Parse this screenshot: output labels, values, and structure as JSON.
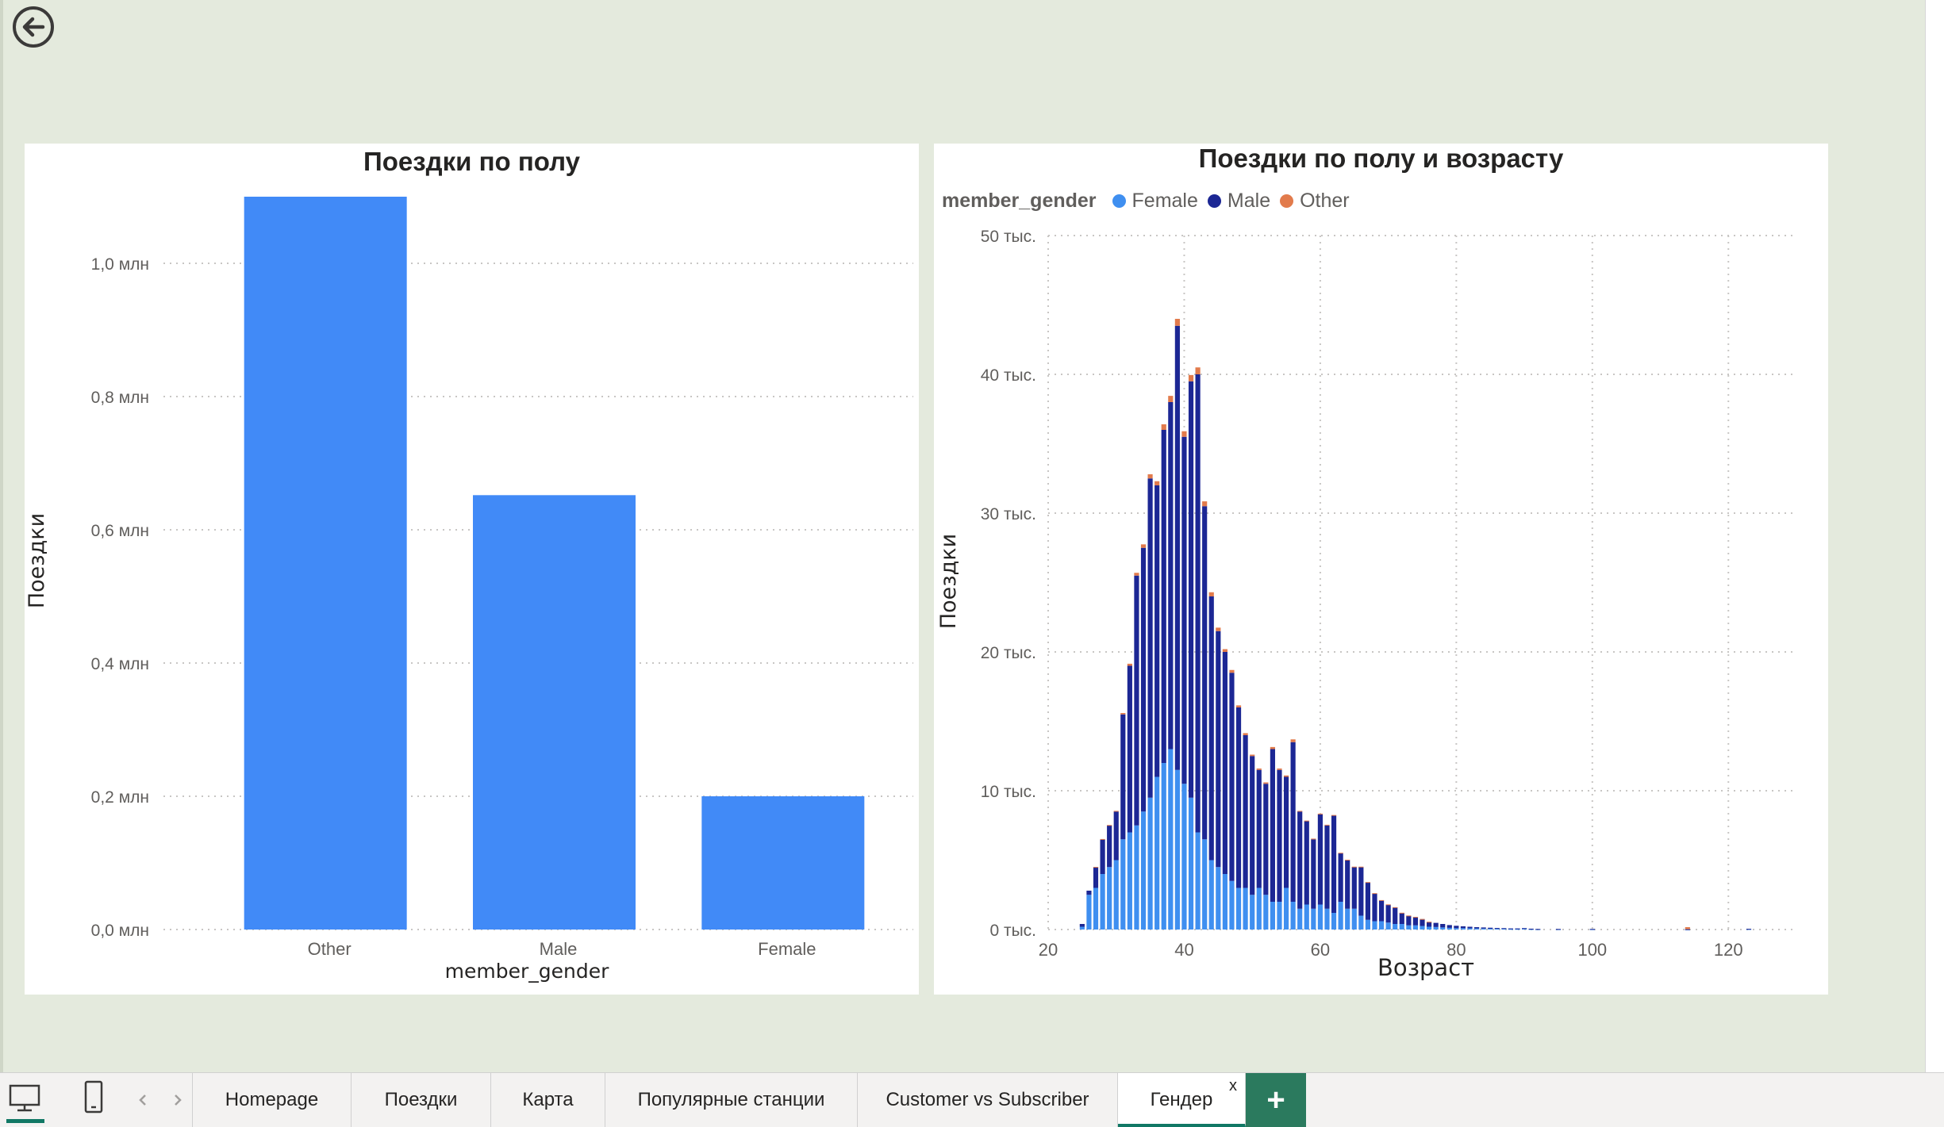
{
  "colors": {
    "bar_blue": "#418af7",
    "female": "#3f8ff0",
    "male": "#1c2794",
    "other": "#e27b4c",
    "background": "#e4eadd",
    "accent_tab": "#117865",
    "add_tab": "#2b7a5e"
  },
  "navigation": {
    "back_icon": "back-arrow-circle-icon"
  },
  "left_chart": {
    "chart_data": {
      "type": "bar",
      "title": "Поездки по полу",
      "xlabel": "member_gender",
      "ylabel": "Поездки",
      "categories": [
        "Other",
        "Male",
        "Female"
      ],
      "values": [
        1100000,
        652000,
        200000
      ],
      "ylim": [
        0,
        1100000
      ],
      "yticks": [
        0,
        200000,
        400000,
        600000,
        800000,
        1000000
      ],
      "ytick_labels": [
        "0,0 млн",
        "0,2 млн",
        "0,4 млн",
        "0,6 млн",
        "0,8 млн",
        "1,0 млн"
      ],
      "grid": true
    }
  },
  "right_chart": {
    "legend_title": "member_gender",
    "chart_data": {
      "type": "bar",
      "stacked": true,
      "title": "Поездки по полу и возрасту",
      "xlabel": "Возраст",
      "ylabel": "Поездки",
      "legend_position": "top-left",
      "xlim": [
        20,
        130
      ],
      "ylim": [
        0,
        50000
      ],
      "xticks": [
        20,
        40,
        60,
        80,
        100,
        120
      ],
      "yticks": [
        0,
        10000,
        20000,
        30000,
        40000,
        50000
      ],
      "ytick_labels": [
        "0 тыс.",
        "10 тыс.",
        "20 тыс.",
        "30 тыс.",
        "40 тыс.",
        "50 тыс."
      ],
      "grid": true,
      "x": [
        25,
        26,
        27,
        28,
        29,
        30,
        31,
        32,
        33,
        34,
        35,
        36,
        37,
        38,
        39,
        40,
        41,
        42,
        43,
        44,
        45,
        46,
        47,
        48,
        49,
        50,
        51,
        52,
        53,
        54,
        55,
        56,
        57,
        58,
        59,
        60,
        61,
        62,
        63,
        64,
        65,
        66,
        67,
        68,
        69,
        70,
        71,
        72,
        73,
        74,
        75,
        76,
        77,
        78,
        79,
        80,
        81,
        82,
        83,
        84,
        85,
        86,
        87,
        88,
        89,
        90,
        91,
        92,
        95,
        100,
        114,
        123
      ],
      "series": [
        {
          "name": "Female",
          "values": [
            200,
            2500,
            3000,
            4000,
            4500,
            5000,
            6500,
            7000,
            7500,
            8500,
            9500,
            11000,
            12000,
            13000,
            11500,
            10500,
            9500,
            7000,
            6500,
            5000,
            4500,
            4000,
            3500,
            3000,
            3000,
            2500,
            3000,
            2500,
            2000,
            2000,
            3000,
            2000,
            1500,
            1800,
            1500,
            1800,
            1500,
            1200,
            2000,
            1500,
            1500,
            1000,
            700,
            600,
            600,
            500,
            400,
            400,
            300,
            300,
            250,
            200,
            180,
            150,
            120,
            100,
            100,
            90,
            80,
            70,
            60,
            50,
            50,
            40,
            40,
            60,
            30,
            20,
            20,
            20,
            10,
            30
          ]
        },
        {
          "name": "Male",
          "values": [
            200,
            300,
            1500,
            2500,
            3000,
            3500,
            9000,
            12000,
            18000,
            19000,
            23000,
            21000,
            24000,
            25000,
            32000,
            25000,
            30000,
            33000,
            24000,
            19000,
            17000,
            16000,
            15000,
            13000,
            11000,
            10000,
            8500,
            8000,
            11000,
            9500,
            8000,
            11500,
            7000,
            6000,
            5000,
            6500,
            6000,
            7000,
            3500,
            3500,
            3000,
            3500,
            2700,
            2000,
            1500,
            1300,
            1200,
            800,
            700,
            600,
            500,
            350,
            300,
            250,
            200,
            170,
            130,
            110,
            90,
            80,
            70,
            60,
            50,
            40,
            40,
            40,
            30,
            20,
            20,
            20,
            10,
            20
          ]
        },
        {
          "name": "Other",
          "values": [
            0,
            0,
            10,
            20,
            30,
            50,
            100,
            150,
            200,
            250,
            300,
            300,
            400,
            450,
            500,
            400,
            450,
            500,
            350,
            300,
            250,
            200,
            200,
            150,
            150,
            100,
            100,
            100,
            150,
            100,
            100,
            200,
            50,
            50,
            50,
            50,
            50,
            50,
            30,
            30,
            30,
            30,
            20,
            20,
            20,
            10,
            10,
            10,
            10,
            10,
            10,
            10,
            0,
            0,
            0,
            0,
            0,
            0,
            0,
            0,
            0,
            0,
            0,
            0,
            0,
            0,
            0,
            0,
            0,
            0,
            150,
            0
          ]
        }
      ]
    }
  },
  "tabbar": {
    "tabs": [
      "Homepage",
      "Поездки",
      "Карта",
      "Популярные станции",
      "Customer vs Subscriber",
      "Гендер"
    ],
    "active_tab": "Гендер",
    "close_glyph": "x",
    "add_glyph": "+",
    "icons": [
      "desktop-view-icon",
      "mobile-view-icon",
      "chevron-left-icon",
      "chevron-right-icon"
    ]
  }
}
